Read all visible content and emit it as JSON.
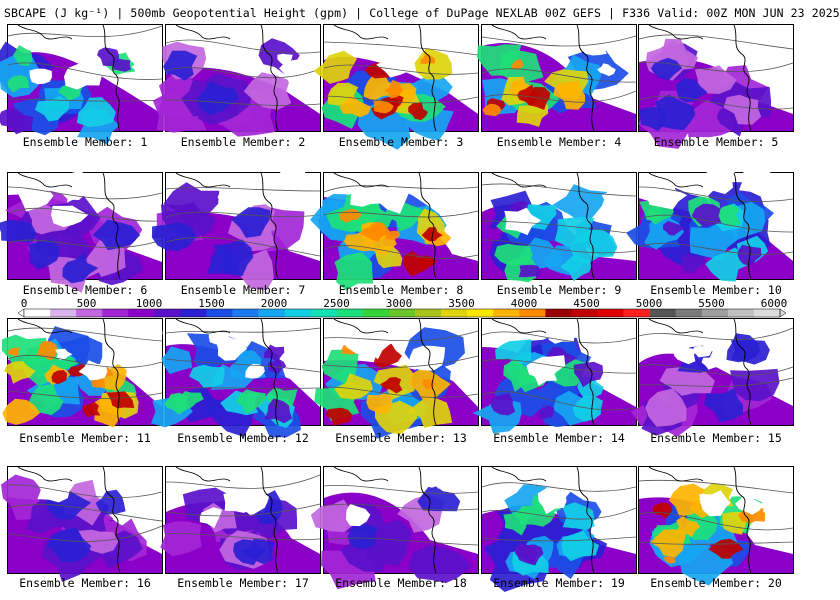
{
  "title": "SBCAPE (J kg⁻¹) | 500mb Geopotential Height (gpm) | College of DuPage NEXLAB 00Z GEFS | F336 Valid: 00Z MON JUN 23 2025",
  "panel_label_prefix": "Ensemble Member: ",
  "members": [
    {
      "id": 1,
      "label": "Ensemble Member: 1",
      "level": "mid"
    },
    {
      "id": 2,
      "label": "Ensemble Member: 2",
      "level": "low"
    },
    {
      "id": 3,
      "label": "Ensemble Member: 3",
      "level": "high"
    },
    {
      "id": 4,
      "label": "Ensemble Member: 4",
      "level": "high"
    },
    {
      "id": 5,
      "label": "Ensemble Member: 5",
      "level": "low"
    },
    {
      "id": 6,
      "label": "Ensemble Member: 6",
      "level": "low"
    },
    {
      "id": 7,
      "label": "Ensemble Member: 7",
      "level": "low"
    },
    {
      "id": 8,
      "label": "Ensemble Member: 8",
      "level": "high"
    },
    {
      "id": 9,
      "label": "Ensemble Member: 9",
      "level": "mid"
    },
    {
      "id": 10,
      "label": "Ensemble Member: 10",
      "level": "mid"
    },
    {
      "id": 11,
      "label": "Ensemble Member: 11",
      "level": "high"
    },
    {
      "id": 12,
      "label": "Ensemble Member: 12",
      "level": "mid"
    },
    {
      "id": 13,
      "label": "Ensemble Member: 13",
      "level": "high"
    },
    {
      "id": 14,
      "label": "Ensemble Member: 14",
      "level": "mid"
    },
    {
      "id": 15,
      "label": "Ensemble Member: 15",
      "level": "low"
    },
    {
      "id": 16,
      "label": "Ensemble Member: 16",
      "level": "low"
    },
    {
      "id": 17,
      "label": "Ensemble Member: 17",
      "level": "low"
    },
    {
      "id": 18,
      "label": "Ensemble Member: 18",
      "level": "low"
    },
    {
      "id": 19,
      "label": "Ensemble Member: 19",
      "level": "mid"
    },
    {
      "id": 20,
      "label": "Ensemble Member: 20",
      "level": "high"
    }
  ],
  "colorbar": {
    "ticks": [
      "0",
      "500",
      "1000",
      "1500",
      "2000",
      "2500",
      "3000",
      "3500",
      "4000",
      "4500",
      "5000",
      "5500",
      "6000"
    ],
    "min": 0,
    "max": 6000,
    "colors": [
      "#ffffff",
      "#d9b3ee",
      "#c267e0",
      "#a326d6",
      "#8a00c8",
      "#5a10c9",
      "#2a1fd2",
      "#1a4ee6",
      "#1b7af0",
      "#16a6f2",
      "#12cfe6",
      "#14e0b6",
      "#1ee07a",
      "#36d53a",
      "#6ac629",
      "#a9c21c",
      "#dfd40c",
      "#ffe600",
      "#ffb400",
      "#ff8a00",
      "#9a0000",
      "#c00000",
      "#e00000",
      "#ff2020",
      "#555555",
      "#7a7a7a",
      "#9e9e9e",
      "#c0c0c0",
      "#dcdcdc"
    ]
  }
}
